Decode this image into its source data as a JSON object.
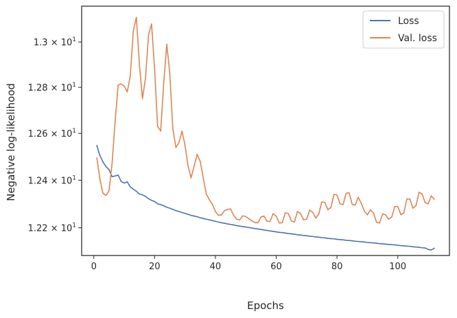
{
  "chart_data": {
    "type": "line",
    "title": "",
    "xlabel": "Epochs",
    "ylabel": "Negative log-likelihood",
    "yscale": "log",
    "xlim": [
      -4,
      117
    ],
    "ylim": [
      12.085,
      13.16
    ],
    "grid": false,
    "legend_position": "top-right",
    "xticks": [
      0,
      20,
      40,
      60,
      80,
      100
    ],
    "xtick_labels": [
      "0",
      "20",
      "40",
      "60",
      "80",
      "100"
    ],
    "yticks": [
      12.2,
      12.4,
      12.6,
      12.8,
      13.0
    ],
    "ytick_labels": [
      {
        "mantissa": "1.22",
        "base": "10",
        "exp": "1"
      },
      {
        "mantissa": "1.24",
        "base": "10",
        "exp": "1"
      },
      {
        "mantissa": "1.26",
        "base": "10",
        "exp": "1"
      },
      {
        "mantissa": "1.28",
        "base": "10",
        "exp": "1"
      },
      {
        "mantissa": "1.3",
        "base": "10",
        "exp": "1"
      }
    ],
    "series": [
      {
        "name": "Loss",
        "color": "#4c72b0",
        "x": [
          1,
          2,
          3,
          4,
          5,
          6,
          7,
          8,
          9,
          10,
          11,
          12,
          13,
          14,
          15,
          16,
          17,
          18,
          19,
          20,
          21,
          22,
          23,
          24,
          25,
          26,
          27,
          28,
          29,
          30,
          31,
          32,
          33,
          34,
          35,
          36,
          37,
          38,
          39,
          40,
          41,
          42,
          43,
          44,
          45,
          46,
          47,
          48,
          49,
          50,
          51,
          52,
          53,
          54,
          55,
          56,
          57,
          58,
          59,
          60,
          61,
          62,
          63,
          64,
          65,
          66,
          67,
          68,
          69,
          70,
          71,
          72,
          73,
          74,
          75,
          76,
          77,
          78,
          79,
          80,
          81,
          82,
          83,
          84,
          85,
          86,
          87,
          88,
          89,
          90,
          91,
          92,
          93,
          94,
          95,
          96,
          97,
          98,
          99,
          100,
          101,
          102,
          103,
          104,
          105,
          106,
          107,
          108,
          109,
          110,
          111,
          112
        ],
        "y": [
          12.548,
          12.505,
          12.478,
          12.458,
          12.445,
          12.415,
          12.418,
          12.422,
          12.395,
          12.388,
          12.393,
          12.372,
          12.362,
          12.353,
          12.342,
          12.338,
          12.332,
          12.322,
          12.315,
          12.31,
          12.3,
          12.297,
          12.292,
          12.286,
          12.282,
          12.277,
          12.272,
          12.268,
          12.264,
          12.26,
          12.256,
          12.252,
          12.249,
          12.246,
          12.242,
          12.239,
          12.236,
          12.233,
          12.23,
          12.227,
          12.224,
          12.221,
          12.219,
          12.216,
          12.214,
          12.212,
          12.209,
          12.207,
          12.205,
          12.203,
          12.201,
          12.199,
          12.197,
          12.195,
          12.193,
          12.191,
          12.189,
          12.187,
          12.185,
          12.183,
          12.181,
          12.18,
          12.178,
          12.176,
          12.175,
          12.173,
          12.171,
          12.17,
          12.168,
          12.167,
          12.165,
          12.164,
          12.162,
          12.161,
          12.159,
          12.158,
          12.156,
          12.155,
          12.154,
          12.152,
          12.151,
          12.15,
          12.148,
          12.147,
          12.146,
          12.144,
          12.143,
          12.142,
          12.141,
          12.139,
          12.138,
          12.137,
          12.136,
          12.134,
          12.133,
          12.132,
          12.131,
          12.13,
          12.129,
          12.127,
          12.126,
          12.125,
          12.124,
          12.123,
          12.121,
          12.12,
          12.119,
          12.117,
          12.116,
          12.11,
          12.108,
          12.115
        ]
      },
      {
        "name": "Val. loss",
        "color": "#dd8452",
        "x": [
          1,
          2,
          3,
          4,
          5,
          6,
          7,
          8,
          9,
          10,
          11,
          12,
          13,
          14,
          15,
          16,
          17,
          18,
          19,
          20,
          21,
          22,
          23,
          24,
          25,
          26,
          27,
          28,
          29,
          30,
          31,
          32,
          33,
          34,
          35,
          36,
          37,
          38,
          39,
          40,
          41,
          42,
          43,
          44,
          45,
          46,
          47,
          48,
          49,
          50,
          51,
          52,
          53,
          54,
          55,
          56,
          57,
          58,
          59,
          60,
          61,
          62,
          63,
          64,
          65,
          66,
          67,
          68,
          69,
          70,
          71,
          72,
          73,
          74,
          75,
          76,
          77,
          78,
          79,
          80,
          81,
          82,
          83,
          84,
          85,
          86,
          87,
          88,
          89,
          90,
          91,
          92,
          93,
          94,
          95,
          96,
          97,
          98,
          99,
          100,
          101,
          102,
          103,
          104,
          105,
          106,
          107,
          108,
          109,
          110,
          111,
          112
        ],
        "y": [
          12.495,
          12.405,
          12.345,
          12.335,
          12.355,
          12.47,
          12.65,
          12.81,
          12.815,
          12.805,
          12.78,
          12.85,
          13.05,
          13.11,
          12.9,
          12.75,
          12.84,
          13.03,
          13.08,
          12.88,
          12.63,
          12.61,
          12.82,
          12.99,
          12.86,
          12.62,
          12.54,
          12.56,
          12.61,
          12.55,
          12.46,
          12.41,
          12.46,
          12.51,
          12.48,
          12.41,
          12.342,
          12.318,
          12.298,
          12.268,
          12.252,
          12.254,
          12.272,
          12.277,
          12.279,
          12.252,
          12.236,
          12.233,
          12.25,
          12.247,
          12.238,
          12.229,
          12.222,
          12.221,
          12.245,
          12.249,
          12.227,
          12.227,
          12.259,
          12.249,
          12.22,
          12.221,
          12.263,
          12.259,
          12.228,
          12.224,
          12.268,
          12.26,
          12.233,
          12.236,
          12.274,
          12.265,
          12.241,
          12.257,
          12.308,
          12.306,
          12.276,
          12.285,
          12.34,
          12.338,
          12.3,
          12.297,
          12.345,
          12.347,
          12.298,
          12.295,
          12.328,
          12.302,
          12.27,
          12.254,
          12.275,
          12.262,
          12.223,
          12.22,
          12.258,
          12.254,
          12.236,
          12.244,
          12.289,
          12.289,
          12.255,
          12.262,
          12.321,
          12.32,
          12.282,
          12.293,
          12.349,
          12.342,
          12.305,
          12.3,
          12.334,
          12.32
        ]
      }
    ]
  }
}
